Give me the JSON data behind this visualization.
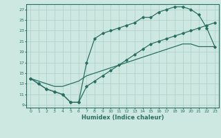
{
  "xlabel": "Humidex (Indice chaleur)",
  "bg_color": "#cce8e0",
  "grid_color": "#aacfc8",
  "line_color": "#2a6e62",
  "xlim": [
    -0.5,
    23.5
  ],
  "ylim": [
    8.5,
    28.0
  ],
  "xticks": [
    0,
    1,
    2,
    3,
    4,
    5,
    6,
    7,
    8,
    9,
    10,
    11,
    12,
    13,
    14,
    15,
    16,
    17,
    18,
    19,
    20,
    21,
    22,
    23
  ],
  "yticks": [
    9,
    11,
    13,
    15,
    17,
    19,
    21,
    23,
    25,
    27
  ],
  "line_diag_x": [
    0,
    1,
    2,
    3,
    4,
    5,
    6,
    7,
    8,
    9,
    10,
    11,
    12,
    13,
    14,
    15,
    16,
    17,
    18,
    19,
    20,
    21,
    22,
    23
  ],
  "line_diag_y": [
    14,
    13.5,
    13.0,
    12.5,
    12.5,
    13.0,
    13.5,
    14.5,
    15.0,
    15.5,
    16.0,
    16.5,
    17.0,
    17.5,
    18.0,
    18.5,
    19.0,
    19.5,
    20.0,
    20.5,
    20.5,
    20.0,
    20.0,
    20.0
  ],
  "line_upper_x": [
    0,
    1,
    2,
    3,
    4,
    5,
    6,
    7,
    8,
    9,
    10,
    11,
    12,
    13,
    14,
    15,
    16,
    17,
    18,
    19,
    20,
    21,
    22,
    23
  ],
  "line_upper_y": [
    14,
    13,
    12,
    11.5,
    11,
    9.5,
    9.5,
    17,
    21.5,
    22.5,
    23,
    23.5,
    24,
    24.5,
    25.5,
    25.5,
    26.5,
    27,
    27.5,
    27.5,
    27,
    26,
    23.5,
    20
  ],
  "line_lower_x": [
    0,
    1,
    2,
    3,
    4,
    5,
    6,
    7,
    8,
    9,
    10,
    11,
    12,
    13,
    14,
    15,
    16,
    17,
    18,
    19,
    20,
    21,
    22,
    23
  ],
  "line_lower_y": [
    14,
    13,
    12,
    11.5,
    11,
    9.5,
    9.5,
    12.5,
    13.5,
    14.5,
    15.5,
    16.5,
    17.5,
    18.5,
    19.5,
    20.5,
    21.0,
    21.5,
    22.0,
    22.5,
    23.0,
    23.5,
    24.0,
    24.5
  ]
}
